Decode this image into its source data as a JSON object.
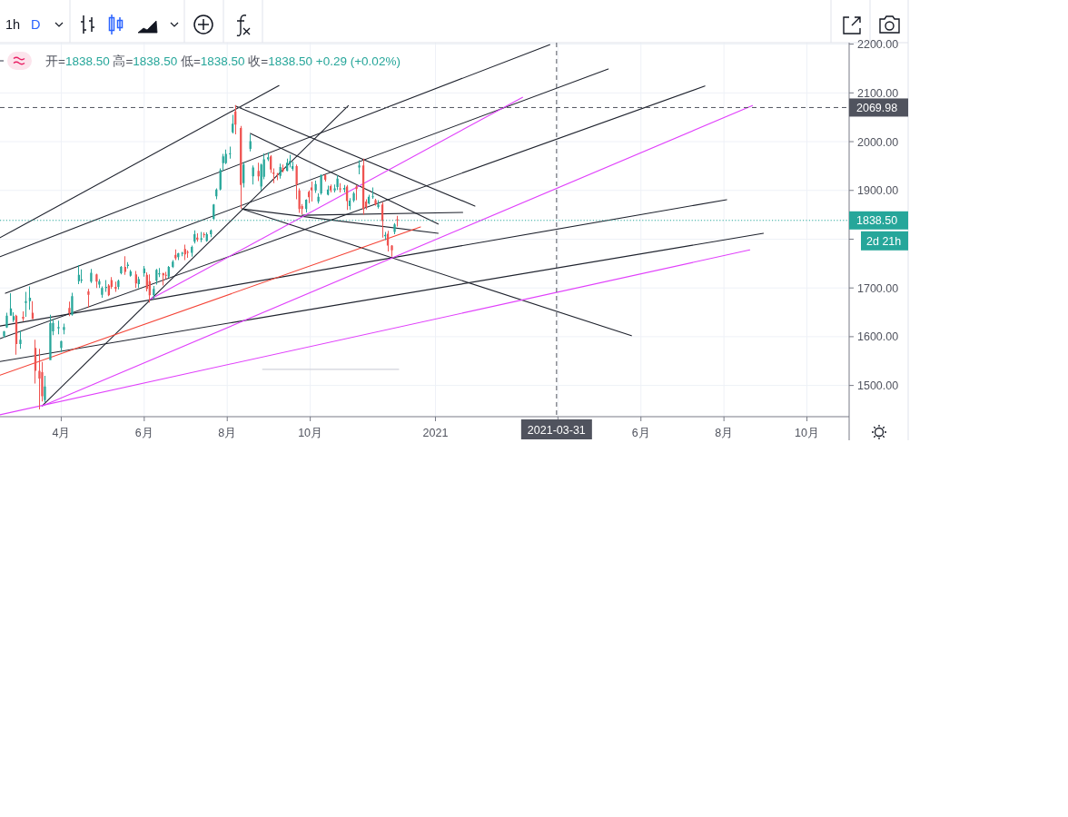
{
  "chart_data": {
    "type": "candlestick",
    "subtitle": "开=1838.50 高=1838.50 低=1838.50 收=1838.50 +0.29 (+0.02%)",
    "annotations": [
      "2d 21h",
      "1h",
      "D"
    ],
    "xlim": [
      "2020-02-16",
      "2021-11-01"
    ],
    "ylim": [
      1436,
      2203
    ],
    "xticks": [
      {
        "value": "2020-04-01",
        "label": "4月"
      },
      {
        "value": "2020-06-01",
        "label": "6月"
      },
      {
        "value": "2020-08-01",
        "label": "8月"
      },
      {
        "value": "2020-10-01",
        "label": "10月"
      },
      {
        "value": "2021-01-01",
        "label": "2021"
      },
      {
        "value": "2021-04-01",
        "label": null
      },
      {
        "value": "2021-06-01",
        "label": "6月"
      },
      {
        "value": "2021-08-01",
        "label": "8月"
      },
      {
        "value": "2021-10-01",
        "label": "10月"
      }
    ],
    "yticks": [
      {
        "value": 1500,
        "label": "1500.00"
      },
      {
        "value": 1600,
        "label": "1600.00"
      },
      {
        "value": 1700,
        "label": "1700.00"
      },
      {
        "value": 1800,
        "label": null
      },
      {
        "value": 1900,
        "label": "1900.00"
      },
      {
        "value": 2000,
        "label": "2000.00"
      },
      {
        "value": 2100,
        "label": "2100.00"
      },
      {
        "value": 2200,
        "label": "2200.00"
      }
    ],
    "grid": true,
    "ref_lines": [
      {
        "axis": "y",
        "value": 2069.98,
        "label": "2069.98",
        "color": "#50535e",
        "line_style": "dashed"
      },
      {
        "axis": "x",
        "value": "2021-03-31",
        "label": "2021-03-31",
        "color": "#50535e",
        "line_style": "dashed"
      },
      {
        "axis": "y",
        "value": 1838.5,
        "label": "1838.50",
        "color": "#26a69a",
        "line_style": "dotted"
      }
    ],
    "x": [
      "2020-02-19",
      "2020-02-21",
      "2020-02-24",
      "2020-02-26",
      "2020-02-28",
      "2020-03-02",
      "2020-03-04",
      "2020-03-06",
      "2020-03-09",
      "2020-03-11",
      "2020-03-13",
      "2020-03-16",
      "2020-03-18",
      "2020-03-20",
      "2020-03-24",
      "2020-03-26",
      "2020-03-30",
      "2020-04-01",
      "2020-04-03",
      "2020-04-07",
      "2020-04-09",
      "2020-04-14",
      "2020-04-16",
      "2020-04-21",
      "2020-04-23",
      "2020-04-27",
      "2020-04-29",
      "2020-05-01",
      "2020-05-04",
      "2020-05-06",
      "2020-05-08",
      "2020-05-11",
      "2020-05-13",
      "2020-05-15",
      "2020-05-18",
      "2020-05-20",
      "2020-05-22",
      "2020-05-26",
      "2020-05-28",
      "2020-06-01",
      "2020-06-03",
      "2020-06-05",
      "2020-06-08",
      "2020-06-10",
      "2020-06-12",
      "2020-06-15",
      "2020-06-17",
      "2020-06-19",
      "2020-06-22",
      "2020-06-24",
      "2020-06-26",
      "2020-06-29",
      "2020-07-01",
      "2020-07-03",
      "2020-07-06",
      "2020-07-08",
      "2020-07-10",
      "2020-07-13",
      "2020-07-15",
      "2020-07-17",
      "2020-07-20",
      "2020-07-22",
      "2020-07-24",
      "2020-07-27",
      "2020-07-29",
      "2020-07-31",
      "2020-08-03",
      "2020-08-05",
      "2020-08-07",
      "2020-08-11",
      "2020-08-13",
      "2020-08-18",
      "2020-08-20",
      "2020-08-24",
      "2020-08-26",
      "2020-08-28",
      "2020-08-31",
      "2020-09-02",
      "2020-09-04",
      "2020-09-07",
      "2020-09-09",
      "2020-09-11",
      "2020-09-14",
      "2020-09-16",
      "2020-09-18",
      "2020-09-21",
      "2020-09-23",
      "2020-09-25",
      "2020-09-28",
      "2020-09-30",
      "2020-10-02",
      "2020-10-05",
      "2020-10-07",
      "2020-10-09",
      "2020-10-12",
      "2020-10-14",
      "2020-10-16",
      "2020-10-19",
      "2020-10-21",
      "2020-10-23",
      "2020-10-26",
      "2020-10-28",
      "2020-10-30",
      "2020-11-02",
      "2020-11-04",
      "2020-11-06",
      "2020-11-09",
      "2020-11-11",
      "2020-11-13",
      "2020-11-16",
      "2020-11-18",
      "2020-11-20",
      "2020-11-23",
      "2020-11-25",
      "2020-11-27",
      "2020-11-30",
      "2020-12-02",
      "2020-12-04"
    ],
    "ohlc": [
      [
        1601,
        1612,
        1598,
        1611
      ],
      [
        1619,
        1649,
        1618,
        1643
      ],
      [
        1643,
        1689,
        1643,
        1658
      ],
      [
        1634,
        1650,
        1630,
        1642
      ],
      [
        1643,
        1645,
        1563,
        1585
      ],
      [
        1585,
        1612,
        1575,
        1594
      ],
      [
        1641,
        1652,
        1632,
        1637
      ],
      [
        1669,
        1692,
        1641,
        1673
      ],
      [
        1673,
        1703,
        1655,
        1680
      ],
      [
        1649,
        1673,
        1636,
        1636
      ],
      [
        1577,
        1594,
        1504,
        1530
      ],
      [
        1530,
        1575,
        1451,
        1514
      ],
      [
        1527,
        1548,
        1467,
        1478
      ],
      [
        1470,
        1520,
        1466,
        1498
      ],
      [
        1552,
        1645,
        1552,
        1628
      ],
      [
        1611,
        1636,
        1603,
        1628
      ],
      [
        1617,
        1633,
        1605,
        1620
      ],
      [
        1577,
        1592,
        1568,
        1591
      ],
      [
        1614,
        1627,
        1605,
        1620
      ],
      [
        1659,
        1672,
        1642,
        1648
      ],
      [
        1645,
        1690,
        1643,
        1683
      ],
      [
        1714,
        1747,
        1708,
        1727
      ],
      [
        1716,
        1738,
        1710,
        1717
      ],
      [
        1693,
        1698,
        1660,
        1686
      ],
      [
        1713,
        1739,
        1710,
        1731
      ],
      [
        1728,
        1729,
        1700,
        1713
      ],
      [
        1707,
        1718,
        1700,
        1714
      ],
      [
        1686,
        1703,
        1680,
        1700
      ],
      [
        1700,
        1716,
        1692,
        1702
      ],
      [
        1705,
        1708,
        1683,
        1685
      ],
      [
        1716,
        1722,
        1698,
        1702
      ],
      [
        1702,
        1713,
        1692,
        1698
      ],
      [
        1702,
        1717,
        1697,
        1715
      ],
      [
        1730,
        1745,
        1728,
        1743
      ],
      [
        1743,
        1765,
        1727,
        1733
      ],
      [
        1745,
        1753,
        1740,
        1748
      ],
      [
        1725,
        1737,
        1723,
        1734
      ],
      [
        1728,
        1735,
        1700,
        1709
      ],
      [
        1708,
        1723,
        1700,
        1718
      ],
      [
        1730,
        1745,
        1723,
        1740
      ],
      [
        1727,
        1732,
        1693,
        1698
      ],
      [
        1714,
        1728,
        1670,
        1685
      ],
      [
        1685,
        1704,
        1677,
        1698
      ],
      [
        1715,
        1739,
        1707,
        1737
      ],
      [
        1728,
        1741,
        1722,
        1730
      ],
      [
        1730,
        1731,
        1705,
        1726
      ],
      [
        1727,
        1733,
        1718,
        1726
      ],
      [
        1723,
        1745,
        1721,
        1743
      ],
      [
        1743,
        1757,
        1741,
        1754
      ],
      [
        1768,
        1779,
        1757,
        1761
      ],
      [
        1763,
        1772,
        1757,
        1771
      ],
      [
        1771,
        1774,
        1765,
        1772
      ],
      [
        1780,
        1789,
        1757,
        1769
      ],
      [
        1774,
        1777,
        1762,
        1772
      ],
      [
        1772,
        1787,
        1764,
        1784
      ],
      [
        1795,
        1818,
        1791,
        1810
      ],
      [
        1803,
        1812,
        1795,
        1799
      ],
      [
        1799,
        1815,
        1794,
        1802
      ],
      [
        1810,
        1814,
        1803,
        1809
      ],
      [
        1796,
        1814,
        1795,
        1810
      ],
      [
        1810,
        1820,
        1804,
        1818
      ],
      [
        1842,
        1872,
        1840,
        1871
      ],
      [
        1888,
        1904,
        1882,
        1902
      ],
      [
        1902,
        1945,
        1900,
        1942
      ],
      [
        1956,
        1975,
        1940,
        1970
      ],
      [
        1956,
        1984,
        1954,
        1975
      ],
      [
        1975,
        1990,
        1965,
        1976
      ],
      [
        2019,
        2055,
        2017,
        2037
      ],
      [
        2062,
        2075,
        2015,
        2035
      ],
      [
        2028,
        2032,
        1863,
        1911
      ],
      [
        1915,
        1958,
        1906,
        1953
      ],
      [
        1985,
        2015,
        1980,
        2001
      ],
      [
        1929,
        1951,
        1912,
        1947
      ],
      [
        1940,
        1957,
        1919,
        1929
      ],
      [
        1908,
        1955,
        1900,
        1953
      ],
      [
        1928,
        1976,
        1923,
        1964
      ],
      [
        1964,
        1978,
        1960,
        1968
      ],
      [
        1970,
        1972,
        1936,
        1943
      ],
      [
        1937,
        1945,
        1915,
        1934
      ],
      [
        1934,
        1936,
        1921,
        1932
      ],
      [
        1930,
        1955,
        1924,
        1948
      ],
      [
        1946,
        1953,
        1937,
        1940
      ],
      [
        1940,
        1965,
        1939,
        1957
      ],
      [
        1954,
        1973,
        1947,
        1960
      ],
      [
        1944,
        1959,
        1940,
        1950
      ],
      [
        1950,
        1953,
        1882,
        1912
      ],
      [
        1900,
        1904,
        1854,
        1862
      ],
      [
        1868,
        1872,
        1851,
        1862
      ],
      [
        1862,
        1882,
        1855,
        1881
      ],
      [
        1897,
        1900,
        1874,
        1886
      ],
      [
        1906,
        1918,
        1877,
        1900
      ],
      [
        1900,
        1920,
        1895,
        1913
      ],
      [
        1877,
        1894,
        1873,
        1887
      ],
      [
        1894,
        1933,
        1891,
        1931
      ],
      [
        1931,
        1933,
        1918,
        1922
      ],
      [
        1891,
        1910,
        1890,
        1902
      ],
      [
        1909,
        1912,
        1896,
        1900
      ],
      [
        1900,
        1912,
        1896,
        1904
      ],
      [
        1907,
        1931,
        1901,
        1924
      ],
      [
        1904,
        1915,
        1896,
        1902
      ],
      [
        1902,
        1911,
        1896,
        1905
      ],
      [
        1908,
        1911,
        1860,
        1878
      ],
      [
        1868,
        1884,
        1860,
        1879
      ],
      [
        1879,
        1897,
        1876,
        1894
      ],
      [
        1908,
        1911,
        1880,
        1903
      ],
      [
        1947,
        1962,
        1933,
        1951
      ],
      [
        1951,
        1965,
        1850,
        1862
      ],
      [
        1877,
        1882,
        1861,
        1866
      ],
      [
        1873,
        1891,
        1871,
        1887
      ],
      [
        1887,
        1906,
        1883,
        1888
      ],
      [
        1880,
        1883,
        1869,
        1871
      ],
      [
        1866,
        1880,
        1863,
        1871
      ],
      [
        1871,
        1876,
        1803,
        1837
      ],
      [
        1806,
        1815,
        1798,
        1809
      ],
      [
        1811,
        1817,
        1775,
        1787
      ],
      [
        1787,
        1788,
        1764,
        1777
      ],
      [
        1815,
        1833,
        1810,
        1830
      ],
      [
        1841,
        1848,
        1826,
        1838.5
      ]
    ],
    "colors": [
      "#26a69a",
      "#26a69a",
      "#26a69a",
      "#26a69a",
      "#ef5350",
      "#26a69a",
      "#ef5350",
      "#26a69a",
      "#26a69a",
      "#ef5350",
      "#ef5350",
      "#ef5350",
      "#ef5350",
      "#26a69a",
      "#26a69a",
      "#26a69a",
      "#26a69a",
      "#26a69a",
      "#26a69a",
      "#ef5350",
      "#26a69a",
      "#26a69a",
      "#26a69a",
      "#ef5350",
      "#26a69a",
      "#ef5350",
      "#26a69a",
      "#26a69a",
      "#26a69a",
      "#ef5350",
      "#ef5350",
      "#ef5350",
      "#26a69a",
      "#26a69a",
      "#ef5350",
      "#26a69a",
      "#26a69a",
      "#ef5350",
      "#26a69a",
      "#26a69a",
      "#ef5350",
      "#ef5350",
      "#26a69a",
      "#26a69a",
      "#26a69a",
      "#ef5350",
      "#ef5350",
      "#26a69a",
      "#26a69a",
      "#ef5350",
      "#26a69a",
      "#26a69a",
      "#ef5350",
      "#ef5350",
      "#26a69a",
      "#26a69a",
      "#ef5350",
      "#26a69a",
      "#ef5350",
      "#26a69a",
      "#26a69a",
      "#26a69a",
      "#26a69a",
      "#26a69a",
      "#26a69a",
      "#26a69a",
      "#26a69a",
      "#26a69a",
      "#ef5350",
      "#ef5350",
      "#26a69a",
      "#26a69a",
      "#26a69a",
      "#ef5350",
      "#26a69a",
      "#26a69a",
      "#26a69a",
      "#ef5350",
      "#ef5350",
      "#ef5350",
      "#26a69a",
      "#ef5350",
      "#26a69a",
      "#26a69a",
      "#26a69a",
      "#ef5350",
      "#ef5350",
      "#ef5350",
      "#26a69a",
      "#ef5350",
      "#ef5350",
      "#26a69a",
      "#26a69a",
      "#26a69a",
      "#ef5350",
      "#26a69a",
      "#ef5350",
      "#26a69a",
      "#26a69a",
      "#ef5350",
      "#26a69a",
      "#ef5350",
      "#26a69a",
      "#26a69a",
      "#ef5350",
      "#26a69a",
      "#ef5350",
      "#ef5350",
      "#26a69a",
      "#26a69a",
      "#ef5350",
      "#26a69a",
      "#ef5350",
      "#26a69a",
      "#ef5350",
      "#ef5350",
      "#26a69a",
      "#ef5350"
    ],
    "series": [
      {
        "type": "line",
        "x": [
          "2020-02-16",
          "2020-09-08"
        ],
        "values": [
          1803,
          2115
        ],
        "color": "#1e222d"
      },
      {
        "type": "line",
        "x": [
          "2020-02-16",
          "2021-03-26"
        ],
        "values": [
          1764,
          2199
        ],
        "color": "#1e222d"
      },
      {
        "type": "line",
        "x": [
          "2020-02-16",
          "2021-07-18"
        ],
        "values": [
          1596,
          2114
        ],
        "color": "#1e222d"
      },
      {
        "type": "line",
        "x": [
          "2020-02-20",
          "2021-05-08"
        ],
        "values": [
          1689,
          2149
        ],
        "color": "#1e222d"
      },
      {
        "type": "line",
        "x": [
          "2020-02-16",
          "2021-08-03"
        ],
        "values": [
          1622,
          1881
        ],
        "color": "#1e222d"
      },
      {
        "type": "line",
        "x": [
          "2020-02-16",
          "2021-08-30"
        ],
        "values": [
          1549,
          1812
        ],
        "color": "#1e222d"
      },
      {
        "type": "line",
        "x": [
          "2020-03-18",
          "2020-10-29"
        ],
        "values": [
          1458,
          2074
        ],
        "color": "#1e222d"
      },
      {
        "type": "line",
        "x": [
          "2020-08-07",
          "2021-01-30"
        ],
        "values": [
          2073,
          1868
        ],
        "color": "#1e222d"
      },
      {
        "type": "line",
        "x": [
          "2020-08-18",
          "2021-01-03"
        ],
        "values": [
          2017,
          1831
        ],
        "color": "#1e222d"
      },
      {
        "type": "line",
        "x": [
          "2020-08-12",
          "2021-01-03"
        ],
        "values": [
          1862,
          1812
        ],
        "color": "#1e222d"
      },
      {
        "type": "line",
        "x": [
          "2020-08-12",
          "2021-05-25"
        ],
        "values": [
          1862,
          1602
        ],
        "color": "#1e222d"
      },
      {
        "type": "line",
        "x": [
          "2020-09-25",
          "2021-01-21"
        ],
        "values": [
          1849,
          1855
        ],
        "color": "#1e222d"
      },
      {
        "type": "line",
        "x": [
          "2020-02-16",
          "2020-12-21"
        ],
        "values": [
          1521,
          1825
        ],
        "color": "#f44336"
      },
      {
        "type": "line",
        "x": [
          "2020-03-18",
          "2021-08-22"
        ],
        "values": [
          1458,
          2074
        ],
        "color": "#e040fb"
      },
      {
        "type": "line",
        "x": [
          "2020-02-16",
          "2021-08-20"
        ],
        "values": [
          1440,
          1778
        ],
        "color": "#e040fb"
      },
      {
        "type": "line",
        "x": [
          "2020-06-05",
          "2021-03-06"
        ],
        "values": [
          1676,
          2091
        ],
        "color": "#e040fb"
      },
      {
        "type": "line",
        "x": [
          "2020-08-27",
          "2020-12-05"
        ],
        "values": [
          1533,
          1533
        ],
        "color": "#d1d4dc"
      }
    ]
  }
}
